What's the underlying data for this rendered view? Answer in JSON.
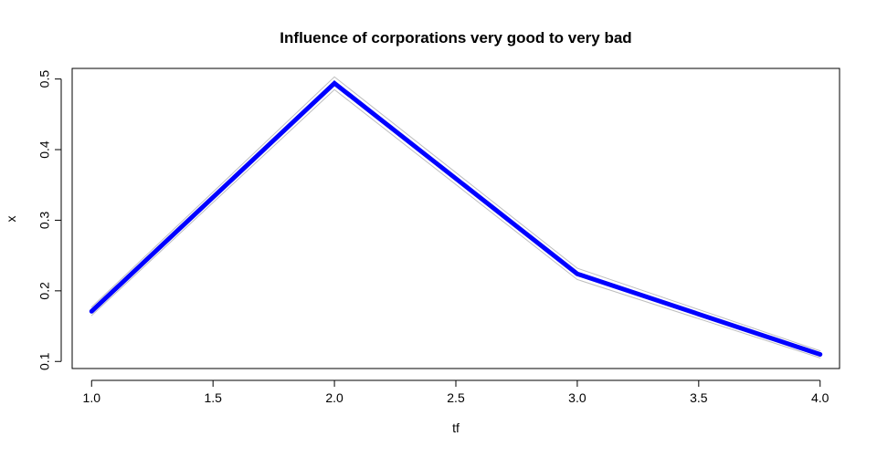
{
  "chart_data": {
    "type": "line",
    "title": "Influence of corporations very good to very bad",
    "xlabel": "tf",
    "ylabel": "x",
    "x": [
      1.0,
      2.0,
      3.0,
      4.0
    ],
    "xlim": [
      0.92,
      4.08
    ],
    "ylim": [
      0.09,
      0.515
    ],
    "xticks": [
      "1.0",
      "1.5",
      "2.0",
      "2.5",
      "3.0",
      "3.5",
      "4.0"
    ],
    "yticks": [
      "0.1",
      "0.2",
      "0.3",
      "0.4",
      "0.5"
    ],
    "grid": false,
    "series": [
      {
        "role": "estimate",
        "values": [
          0.171,
          0.494,
          0.224,
          0.11
        ],
        "color": "#0000ff"
      },
      {
        "role": "upper-bound",
        "values": [
          0.177,
          0.503,
          0.232,
          0.115
        ],
        "color": "#bebebe"
      },
      {
        "role": "lower-bound",
        "values": [
          0.165,
          0.485,
          0.216,
          0.105
        ],
        "color": "#bebebe"
      }
    ]
  }
}
